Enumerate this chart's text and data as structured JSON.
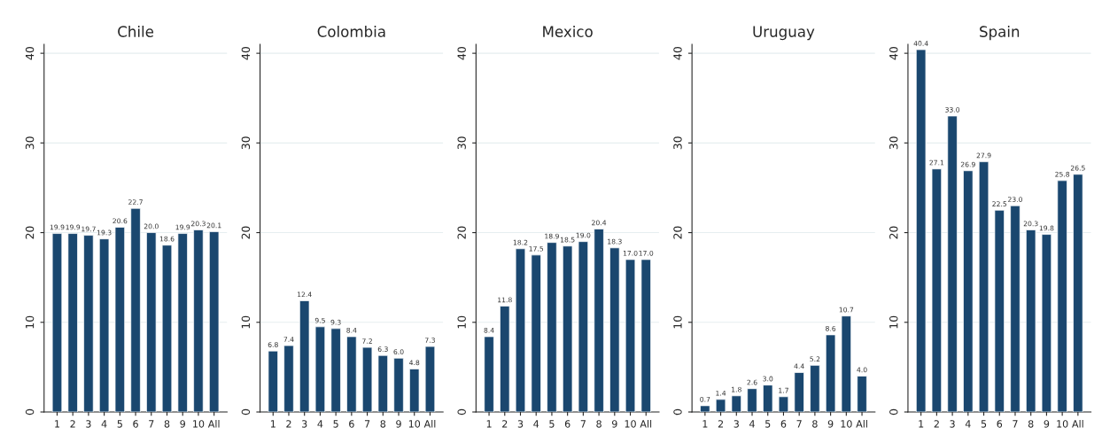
{
  "chart_data": [
    {
      "type": "bar",
      "title": "Chile",
      "categories": [
        "1",
        "2",
        "3",
        "4",
        "5",
        "6",
        "7",
        "8",
        "9",
        "10",
        "All"
      ],
      "values": [
        19.9,
        19.9,
        19.7,
        19.3,
        20.6,
        22.7,
        20.0,
        18.6,
        19.9,
        20.3,
        20.1
      ],
      "value_labels": [
        "19.9",
        "19.9",
        "19.7",
        "19.3",
        "20.6",
        "22.7",
        "20.0",
        "18.6",
        "19.9",
        "20.3",
        "20.1"
      ],
      "color": "#1a476f",
      "ylim": [
        0,
        41
      ],
      "yticks": [
        0,
        10,
        20,
        30,
        40
      ],
      "grid": "y"
    },
    {
      "type": "bar",
      "title": "Colombia",
      "categories": [
        "1",
        "2",
        "3",
        "4",
        "5",
        "6",
        "7",
        "8",
        "9",
        "10",
        "All"
      ],
      "values": [
        6.8,
        7.4,
        12.4,
        9.5,
        9.3,
        8.4,
        7.2,
        6.3,
        6.0,
        4.8,
        7.3
      ],
      "value_labels": [
        "6.8",
        "7.4",
        "12.4",
        "9.5",
        "9.3",
        "8.4",
        "7.2",
        "6.3",
        "6.0",
        "4.8",
        "7.3"
      ],
      "color": "#1a476f",
      "ylim": [
        0,
        41
      ],
      "yticks": [
        0,
        10,
        20,
        30,
        40
      ],
      "grid": "y"
    },
    {
      "type": "bar",
      "title": "Mexico",
      "categories": [
        "1",
        "2",
        "3",
        "4",
        "5",
        "6",
        "7",
        "8",
        "9",
        "10",
        "All"
      ],
      "values": [
        8.4,
        11.8,
        18.2,
        17.5,
        18.9,
        18.5,
        19.0,
        20.4,
        18.3,
        17.0,
        17.0
      ],
      "value_labels": [
        "8.4",
        "11.8",
        "18.2",
        "17.5",
        "18.9",
        "18.5",
        "19.0",
        "20.4",
        "18.3",
        "17.0",
        "17.0"
      ],
      "color": "#1a476f",
      "ylim": [
        0,
        41
      ],
      "yticks": [
        0,
        10,
        20,
        30,
        40
      ],
      "grid": "y"
    },
    {
      "type": "bar",
      "title": "Uruguay",
      "categories": [
        "1",
        "2",
        "3",
        "4",
        "5",
        "6",
        "7",
        "8",
        "9",
        "10",
        "All"
      ],
      "values": [
        0.7,
        1.4,
        1.8,
        2.6,
        3.0,
        1.7,
        4.4,
        5.2,
        8.6,
        10.7,
        4.0
      ],
      "value_labels": [
        "0.7",
        "1.4",
        "1.8",
        "2.6",
        "3.0",
        "1.7",
        "4.4",
        "5.2",
        "8.6",
        "10.7",
        "4.0"
      ],
      "color": "#1a476f",
      "ylim": [
        0,
        41
      ],
      "yticks": [
        0,
        10,
        20,
        30,
        40
      ],
      "grid": "y"
    },
    {
      "type": "bar",
      "title": "Spain",
      "categories": [
        "1",
        "2",
        "3",
        "4",
        "5",
        "6",
        "7",
        "8",
        "9",
        "10",
        "All"
      ],
      "values": [
        40.4,
        27.1,
        33.0,
        26.9,
        27.9,
        22.5,
        23.0,
        20.3,
        19.8,
        25.8,
        26.5
      ],
      "value_labels": [
        "40.4",
        "27.1",
        "33.0",
        "26.9",
        "27.9",
        "22.5",
        "23.0",
        "20.3",
        "19.8",
        "25.8",
        "26.5"
      ],
      "color": "#1a476f",
      "ylim": [
        0,
        41
      ],
      "yticks": [
        0,
        10,
        20,
        30,
        40
      ],
      "grid": "y"
    }
  ]
}
